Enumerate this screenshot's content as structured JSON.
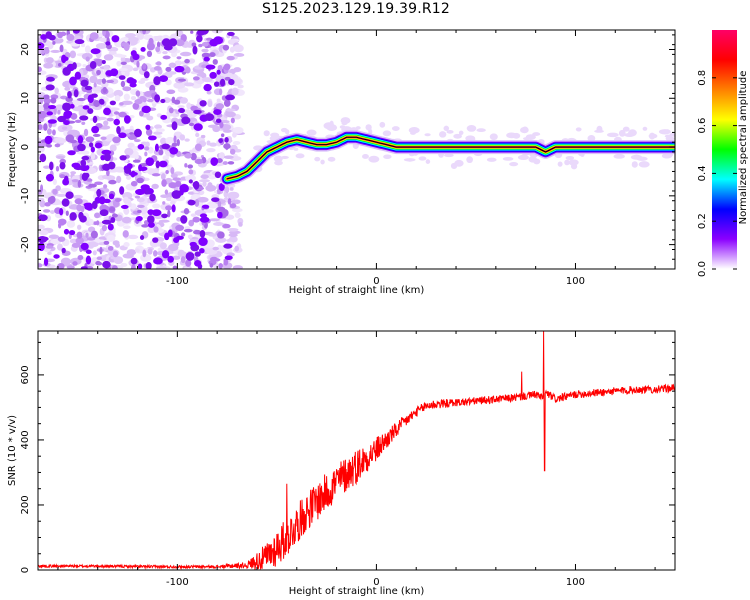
{
  "title": "S125.2023.129.19.39.R12",
  "chart_data": [
    {
      "type": "heatmap",
      "xlabel": "Height of straight line (km)",
      "ylabel": "Frequency (Hz)",
      "xlim": [
        -170,
        150
      ],
      "ylim": [
        -25,
        24
      ],
      "xticks": [
        -100,
        0,
        100
      ],
      "yticks": [
        -20,
        -10,
        0,
        10,
        20
      ],
      "grid": false,
      "noise_region": {
        "x": [
          -170,
          -72
        ],
        "note_values": "scattered low-amplitude speckle"
      },
      "ridge": {
        "x": [
          -75,
          -70,
          -65,
          -60,
          -55,
          -50,
          -45,
          -40,
          -35,
          -30,
          -25,
          -20,
          -15,
          -10,
          -5,
          0,
          5,
          10,
          20,
          40,
          60,
          75,
          80,
          85,
          90,
          100,
          120,
          150
        ],
        "frequency": [
          -6.5,
          -6,
          -5,
          -3,
          -1,
          0,
          1,
          1.5,
          1,
          0.5,
          0.5,
          1,
          2,
          2,
          1.5,
          1,
          0.5,
          0,
          0,
          0,
          0,
          0,
          0,
          -1,
          0,
          0,
          0,
          0
        ]
      },
      "colorbar": {
        "label": "Normalized spectral amplitude",
        "range": [
          0,
          1
        ],
        "ticks": [
          "0.0",
          "0.2",
          "0.4",
          "0.6",
          "0.8"
        ],
        "colors": [
          "#ffffff",
          "#8b00ff",
          "#0000ff",
          "#00ffff",
          "#00ff00",
          "#ffff00",
          "#ff8000",
          "#ff0000",
          "#ff0066"
        ]
      }
    },
    {
      "type": "line",
      "xlabel": "Height of straight line (km)",
      "ylabel": "SNR (10 * v/v)",
      "xlim": [
        -170,
        150
      ],
      "ylim": [
        0,
        735
      ],
      "xticks": [
        -100,
        0,
        100
      ],
      "yticks": [
        0,
        200,
        400,
        600
      ],
      "grid": false,
      "series": [
        {
          "color": "#ff0000",
          "x": [
            -170,
            -140,
            -110,
            -80,
            -65,
            -55,
            -50,
            -45,
            -40,
            -35,
            -30,
            -25,
            -20,
            -15,
            -10,
            -5,
            0,
            5,
            10,
            15,
            20,
            25,
            30,
            40,
            50,
            60,
            70,
            75,
            80,
            83,
            85,
            90,
            100,
            110,
            120,
            130,
            140,
            150
          ],
          "y": [
            12,
            12,
            10,
            10,
            15,
            40,
            70,
            100,
            140,
            180,
            210,
            240,
            270,
            295,
            320,
            345,
            370,
            400,
            430,
            460,
            485,
            505,
            510,
            515,
            520,
            525,
            530,
            535,
            540,
            530,
            545,
            525,
            540,
            545,
            550,
            555,
            555,
            560
          ],
          "noise": [
            4,
            4,
            4,
            4,
            10,
            45,
            60,
            60,
            60,
            60,
            60,
            60,
            60,
            55,
            55,
            45,
            40,
            30,
            25,
            20,
            15,
            15,
            15,
            12,
            12,
            12,
            12,
            12,
            12,
            12,
            12,
            12,
            12,
            12,
            12,
            12,
            12,
            12
          ],
          "spikes": [
            {
              "x": -45,
              "y": 265
            },
            {
              "x": 73,
              "y": 610
            },
            {
              "x": 84,
              "y": 735
            },
            {
              "x": 84.5,
              "y": 305
            }
          ]
        }
      ]
    }
  ]
}
